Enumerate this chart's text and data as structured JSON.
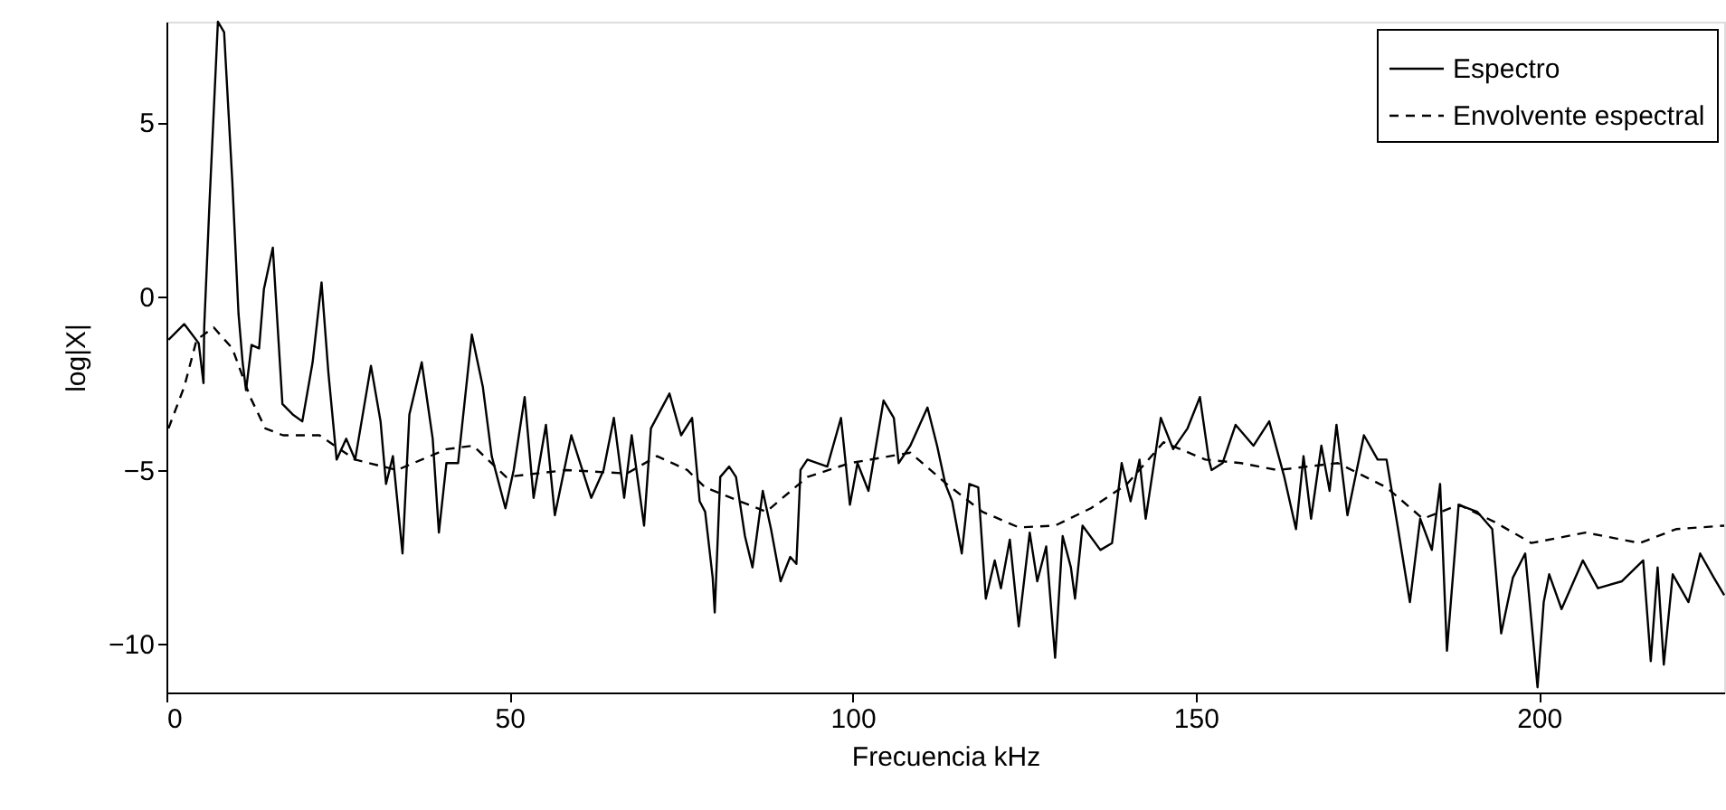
{
  "chart_data": {
    "type": "line",
    "xlabel": "Frecuencia kHz",
    "ylabel": "log|X|",
    "xlim": [
      0,
      227
    ],
    "ylim": [
      -11.4,
      7.9
    ],
    "xticks": [
      0,
      50,
      100,
      150,
      200
    ],
    "yticks": [
      -10,
      -5,
      0,
      5
    ],
    "grid": false,
    "legend": "top right",
    "series": [
      {
        "name": "Espectro",
        "color": "#000000",
        "line_style": "solid",
        "x": [
          0.3,
          2.6,
          4.7,
          5.4,
          5.5,
          6.3,
          7.5,
          8.4,
          9.6,
          10.5,
          11.1,
          11.6,
          12.4,
          13.5,
          14.2,
          15.5,
          16.9,
          18.4,
          19.8,
          21.3,
          22.6,
          23.6,
          24.8,
          26.2,
          27.5,
          29.8,
          31.2,
          32,
          33,
          34.4,
          35.4,
          37.2,
          38.8,
          39.7,
          40.8,
          42.5,
          44.5,
          46.1,
          47.4,
          49.4,
          50.6,
          52.2,
          53.5,
          55.3,
          56.6,
          59,
          61.9,
          63.7,
          65.2,
          66.7,
          67.8,
          69.6,
          70.6,
          73.3,
          75,
          76.6,
          77.7,
          78.5,
          79.6,
          79.9,
          80.7,
          82,
          83,
          84.3,
          85.4,
          86.9,
          88.1,
          89.5,
          90.9,
          91.8,
          92.4,
          93.4,
          96.3,
          98.3,
          99.6,
          100.7,
          102.3,
          104.5,
          106,
          106.7,
          108.4,
          110.9,
          112.3,
          113.5,
          114.5,
          115.9,
          117,
          118.3,
          119.4,
          120.7,
          121.6,
          122.9,
          124.2,
          125.8,
          126.9,
          128.2,
          129.5,
          130.6,
          131.8,
          132.4,
          133.5,
          136.1,
          137.8,
          139.2,
          140.5,
          141.8,
          142.7,
          144.9,
          146.7,
          148.8,
          150.6,
          151.9,
          152.3,
          153.9,
          155.8,
          158.4,
          160.7,
          162.9,
          164.6,
          165.7,
          166.8,
          168.3,
          169.5,
          170.5,
          172.1,
          174.5,
          176.5,
          177.8,
          179.4,
          181.2,
          182.7,
          184.4,
          185.6,
          186.6,
          188.3,
          191,
          193.2,
          194.5,
          196.2,
          198,
          199.8,
          200.7,
          201.5,
          203.3,
          206.4,
          208.6,
          212.1,
          215.2,
          216.3,
          217.3,
          218.2,
          219.5,
          221.8,
          223.5,
          225.5,
          227
        ],
        "values": [
          -1.25,
          -0.8,
          -1.35,
          -2.5,
          -0.9,
          2.8,
          7.9,
          7.6,
          3.3,
          -0.5,
          -1.9,
          -2.7,
          -1.4,
          -1.5,
          0.2,
          1.4,
          -3.1,
          -3.4,
          -3.6,
          -1.9,
          0.4,
          -2.2,
          -4.7,
          -4.1,
          -4.7,
          -2.0,
          -3.6,
          -5.4,
          -4.6,
          -7.4,
          -3.4,
          -1.9,
          -4.1,
          -6.8,
          -4.8,
          -4.8,
          -1.1,
          -2.6,
          -4.6,
          -6.1,
          -5.0,
          -2.9,
          -5.8,
          -3.7,
          -6.3,
          -4.0,
          -5.8,
          -5.0,
          -3.5,
          -5.8,
          -4.0,
          -6.6,
          -3.8,
          -2.8,
          -4.0,
          -3.5,
          -5.9,
          -6.2,
          -8.1,
          -9.1,
          -5.2,
          -4.9,
          -5.2,
          -6.9,
          -7.8,
          -5.6,
          -6.7,
          -8.2,
          -7.5,
          -7.7,
          -5.0,
          -4.7,
          -4.9,
          -3.5,
          -6.0,
          -4.8,
          -5.6,
          -3.0,
          -3.5,
          -4.8,
          -4.3,
          -3.2,
          -4.3,
          -5.4,
          -5.9,
          -7.4,
          -5.4,
          -5.5,
          -8.7,
          -7.6,
          -8.4,
          -7.0,
          -9.5,
          -6.8,
          -8.2,
          -7.2,
          -10.4,
          -6.9,
          -7.8,
          -8.7,
          -6.6,
          -7.3,
          -7.1,
          -4.8,
          -5.9,
          -4.7,
          -6.4,
          -3.5,
          -4.4,
          -3.8,
          -2.9,
          -4.7,
          -5.0,
          -4.8,
          -3.7,
          -4.3,
          -3.6,
          -5.2,
          -6.7,
          -4.6,
          -6.4,
          -4.3,
          -5.6,
          -3.7,
          -6.3,
          -4.0,
          -4.7,
          -4.7,
          -6.6,
          -8.8,
          -6.4,
          -7.3,
          -5.4,
          -10.2,
          -6.0,
          -6.2,
          -6.7,
          -9.7,
          -8.1,
          -7.4,
          -11.25,
          -8.8,
          -8.0,
          -9.0,
          -7.6,
          -8.4,
          -8.2,
          -7.6,
          -10.5,
          -7.8,
          -10.6,
          -8.0,
          -8.8,
          -7.4,
          -8.1,
          -8.6
        ]
      },
      {
        "name": "Envolvente espectral",
        "color": "#000000",
        "line_style": "dashed",
        "x": [
          0.3,
          2.6,
          4.4,
          6.9,
          9.6,
          12.2,
          14.4,
          17,
          22.3,
          27.5,
          33.6,
          40.8,
          44.7,
          49.5,
          58.3,
          67.1,
          71.5,
          75.9,
          78.5,
          87.4,
          93.4,
          99.6,
          108.4,
          113.7,
          118.9,
          124.2,
          129.5,
          134.7,
          140,
          145.3,
          151.4,
          156.6,
          161.9,
          170.7,
          177.8,
          183.1,
          188.4,
          193.6,
          198.9,
          206.8,
          214.7,
          220,
          227
        ],
        "values": [
          -3.8,
          -2.6,
          -1.25,
          -0.9,
          -1.5,
          -2.9,
          -3.8,
          -4.0,
          -4.0,
          -4.7,
          -5.0,
          -4.4,
          -4.3,
          -5.2,
          -5.0,
          -5.1,
          -4.6,
          -5.0,
          -5.5,
          -6.2,
          -5.2,
          -4.8,
          -4.5,
          -5.4,
          -6.2,
          -6.65,
          -6.6,
          -6.1,
          -5.4,
          -4.2,
          -4.7,
          -4.8,
          -5.0,
          -4.8,
          -5.5,
          -6.4,
          -6.0,
          -6.5,
          -7.1,
          -6.8,
          -7.1,
          -6.7,
          -6.6
        ]
      }
    ]
  }
}
